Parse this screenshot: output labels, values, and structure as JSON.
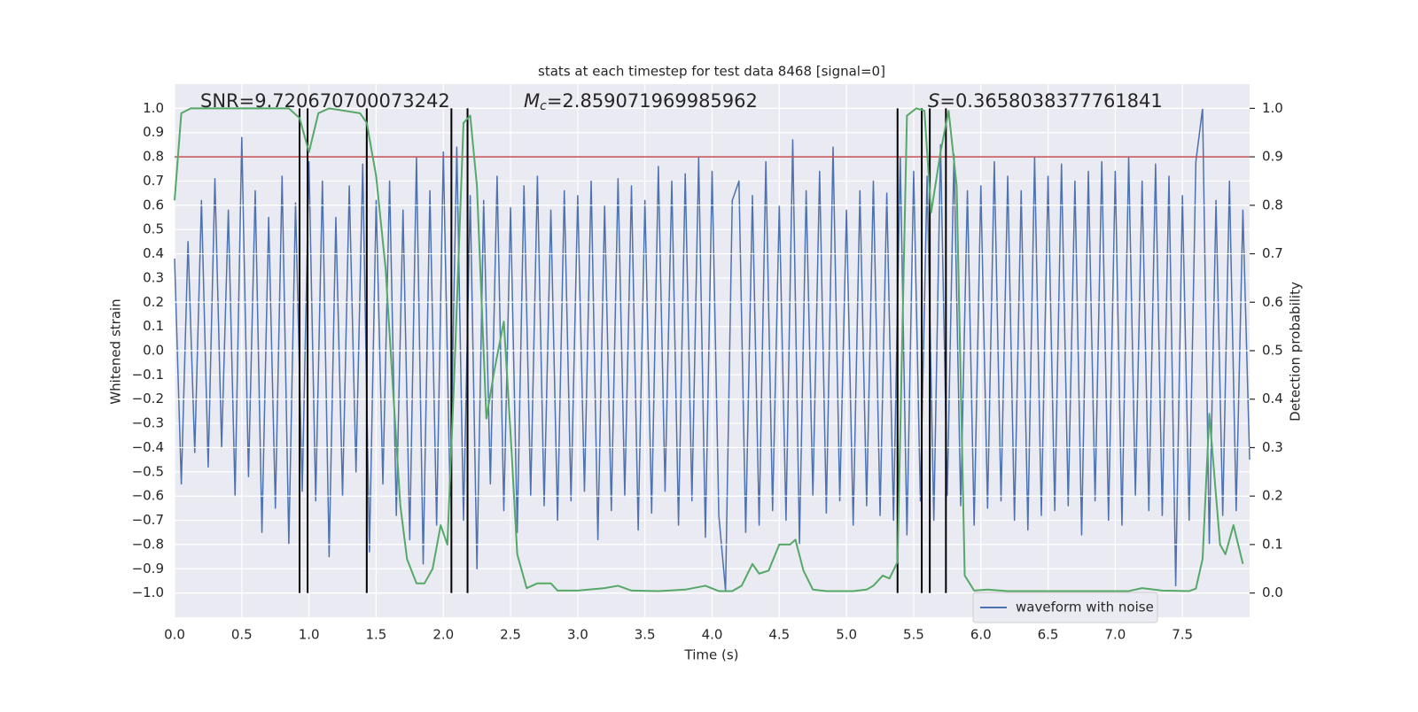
{
  "chart_data": {
    "type": "line",
    "title": "stats at each timestep for test data 8468 [signal=0]",
    "annotations": [
      {
        "text": "SNR=9.720670700073242"
      },
      {
        "symbol": "M",
        "subscript": "c",
        "text": "=2.859071969985962"
      },
      {
        "symbol": "S",
        "text": "=0.3658038377761841"
      }
    ],
    "xlabel": "Time (s)",
    "ylabel": "Whitened strain",
    "y2label": "Detection probability",
    "xlim": [
      0,
      8.0
    ],
    "ylim": [
      -1.1,
      1.1
    ],
    "y2lim": [
      -0.05,
      1.05
    ],
    "xticks": [
      {
        "value": 0,
        "label": "0.0"
      },
      0.5,
      {
        "value": 1,
        "label": "1.0"
      },
      1.5,
      {
        "value": 2,
        "label": "2.0"
      },
      2.5,
      {
        "value": 3,
        "label": "3.0"
      },
      3.5,
      {
        "value": 4,
        "label": "4.0"
      },
      4.5,
      {
        "value": 5,
        "label": "5.0"
      },
      5.5,
      {
        "value": 6,
        "label": "6.0"
      },
      6.5,
      {
        "value": 7,
        "label": "7.0"
      },
      7.5
    ],
    "yticks": [
      {
        "value": -1,
        "label": "−1.0"
      },
      {
        "value": -0.9,
        "label": "−0.9"
      },
      {
        "value": -0.8,
        "label": "−0.8"
      },
      {
        "value": -0.7,
        "label": "−0.7"
      },
      {
        "value": -0.6,
        "label": "−0.6"
      },
      {
        "value": -0.5,
        "label": "−0.5"
      },
      {
        "value": -0.4,
        "label": "−0.4"
      },
      {
        "value": -0.3,
        "label": "−0.3"
      },
      {
        "value": -0.2,
        "label": "−0.2"
      },
      {
        "value": -0.1,
        "label": "−0.1"
      },
      {
        "value": 0,
        "label": "0.0"
      },
      0.1,
      0.2,
      0.3,
      0.4,
      0.5,
      0.6,
      0.7,
      0.8,
      0.9,
      {
        "value": 1,
        "label": "1.0"
      }
    ],
    "y2ticks": [
      {
        "value": 0,
        "label": "0.0"
      },
      0.1,
      0.2,
      0.3,
      0.4,
      0.5,
      0.6,
      0.7,
      0.8,
      0.9,
      {
        "value": 1,
        "label": "1.0"
      }
    ],
    "grid": true,
    "legend": "lower right",
    "series": [
      {
        "name": "waveform with noise",
        "color": "#4c72b0",
        "x": [
          0,
          0.05,
          0.1,
          0.15,
          0.2,
          0.25,
          0.3,
          0.35,
          0.4,
          0.45,
          0.5,
          0.55,
          0.6,
          0.65,
          0.7,
          0.75,
          0.8,
          0.85,
          0.9,
          0.95,
          1,
          1.05,
          1.1,
          1.15,
          1.2,
          1.25,
          1.3,
          1.35,
          1.4,
          1.45,
          1.5,
          1.55,
          1.6,
          1.65,
          1.7,
          1.75,
          1.8,
          1.85,
          1.9,
          1.95,
          2,
          2.05,
          2.1,
          2.15,
          2.2,
          2.25,
          2.3,
          2.35,
          2.4,
          2.45,
          2.5,
          2.55,
          2.6,
          2.65,
          2.7,
          2.75,
          2.8,
          2.85,
          2.9,
          2.95,
          3,
          3.05,
          3.1,
          3.15,
          3.2,
          3.25,
          3.3,
          3.35,
          3.4,
          3.45,
          3.5,
          3.55,
          3.6,
          3.65,
          3.7,
          3.75,
          3.8,
          3.85,
          3.9,
          3.95,
          4,
          4.05,
          4.1,
          4.15,
          4.2,
          4.25,
          4.3,
          4.35,
          4.4,
          4.45,
          4.5,
          4.55,
          4.6,
          4.65,
          4.7,
          4.75,
          4.8,
          4.85,
          4.9,
          4.95,
          5,
          5.05,
          5.1,
          5.15,
          5.2,
          5.25,
          5.3,
          5.35,
          5.4,
          5.45,
          5.5,
          5.55,
          5.6,
          5.65,
          5.7,
          5.75,
          5.8,
          5.85,
          5.9,
          5.95,
          6,
          6.05,
          6.1,
          6.15,
          6.2,
          6.25,
          6.3,
          6.35,
          6.4,
          6.45,
          6.5,
          6.55,
          6.6,
          6.65,
          6.7,
          6.75,
          6.8,
          6.85,
          6.9,
          6.95,
          7,
          7.05,
          7.1,
          7.15,
          7.2,
          7.25,
          7.3,
          7.35,
          7.4,
          7.45,
          7.5,
          7.55,
          7.6,
          7.65,
          7.7,
          7.75,
          7.8,
          7.85,
          7.9,
          7.95,
          8
        ],
        "values": [
          0.38,
          -0.55,
          0.45,
          -0.42,
          0.62,
          -0.48,
          0.71,
          -0.4,
          0.58,
          -0.6,
          0.88,
          -0.52,
          0.66,
          -0.75,
          0.55,
          -0.65,
          0.72,
          -0.8,
          0.61,
          -0.58,
          0.78,
          -0.62,
          0.7,
          -0.85,
          0.55,
          -0.6,
          0.68,
          -0.5,
          0.77,
          -0.83,
          0.62,
          -0.55,
          0.7,
          -0.68,
          0.58,
          -0.78,
          0.8,
          -0.88,
          0.66,
          -0.72,
          0.82,
          -0.6,
          0.84,
          -0.7,
          0.64,
          -0.9,
          0.62,
          -0.55,
          0.72,
          -0.66,
          0.59,
          -0.75,
          0.68,
          -0.6,
          0.72,
          -0.64,
          0.58,
          -0.7,
          0.66,
          -0.62,
          0.64,
          -0.58,
          0.7,
          -0.78,
          0.6,
          -0.66,
          0.71,
          -0.6,
          0.68,
          -0.74,
          0.62,
          -0.67,
          0.76,
          -0.58,
          0.7,
          -0.72,
          0.73,
          -0.62,
          0.8,
          -0.77,
          0.74,
          -0.68,
          -0.99,
          0.62,
          0.7,
          -0.75,
          0.64,
          -0.72,
          0.78,
          -0.66,
          0.6,
          -0.7,
          0.87,
          -0.8,
          0.66,
          -0.6,
          0.74,
          -0.67,
          0.84,
          -0.62,
          0.58,
          -0.72,
          0.66,
          -0.64,
          0.7,
          -0.68,
          0.65,
          -0.7,
          0.8,
          -0.76,
          0.74,
          -0.62,
          0.72,
          -0.7,
          0.85,
          -0.6,
          0.81,
          -0.64,
          0.66,
          -0.72,
          0.68,
          -0.65,
          0.78,
          -0.62,
          0.72,
          -0.7,
          0.66,
          -0.74,
          0.8,
          -0.68,
          0.72,
          -0.66,
          0.77,
          -0.64,
          0.7,
          -0.76,
          0.74,
          -0.62,
          0.78,
          -0.7,
          0.74,
          -0.72,
          0.8,
          -0.6,
          0.7,
          -0.66,
          0.77,
          -0.68,
          0.72,
          -0.97,
          0.64,
          -0.7,
          0.78,
          1.0,
          -0.8,
          0.62,
          -0.68,
          0.7,
          -0.66,
          0.58,
          -0.45
        ]
      },
      {
        "color": "#55a868",
        "axis": "y2",
        "x": [
          0,
          0.05,
          0.12,
          0.3,
          0.6,
          0.85,
          0.93,
          1.0,
          1.07,
          1.15,
          1.38,
          1.43,
          1.5,
          1.57,
          1.63,
          1.68,
          1.73,
          1.8,
          1.86,
          1.92,
          1.98,
          2.03,
          2.08,
          2.15,
          2.2,
          2.25,
          2.32,
          2.38,
          2.45,
          2.5,
          2.55,
          2.62,
          2.7,
          2.8,
          2.85,
          3.0,
          3.2,
          3.3,
          3.4,
          3.6,
          3.8,
          3.95,
          4.05,
          4.15,
          4.22,
          4.3,
          4.35,
          4.42,
          4.5,
          4.58,
          4.62,
          4.68,
          4.75,
          4.85,
          5.05,
          5.15,
          5.2,
          5.27,
          5.32,
          5.38,
          5.45,
          5.52,
          5.58,
          5.63,
          5.7,
          5.76,
          5.82,
          5.88,
          5.95,
          6.05,
          6.2,
          6.5,
          6.8,
          7.1,
          7.2,
          7.35,
          7.55,
          7.6,
          7.65,
          7.7,
          7.78,
          7.82,
          7.88,
          7.95
        ],
        "values": [
          0.81,
          0.99,
          1.0,
          1.0,
          1.0,
          1.0,
          0.98,
          0.91,
          0.99,
          1.0,
          0.99,
          0.97,
          0.86,
          0.67,
          0.4,
          0.18,
          0.07,
          0.02,
          0.02,
          0.05,
          0.14,
          0.1,
          0.44,
          0.97,
          0.985,
          0.84,
          0.36,
          0.46,
          0.56,
          0.33,
          0.08,
          0.01,
          0.02,
          0.02,
          0.005,
          0.005,
          0.01,
          0.015,
          0.005,
          0.004,
          0.007,
          0.015,
          0.004,
          0.004,
          0.015,
          0.06,
          0.04,
          0.046,
          0.1,
          0.1,
          0.11,
          0.046,
          0.007,
          0.004,
          0.004,
          0.007,
          0.015,
          0.036,
          0.03,
          0.064,
          0.985,
          1.0,
          0.995,
          0.785,
          0.91,
          0.995,
          0.84,
          0.036,
          0.005,
          0.007,
          0.004,
          0.004,
          0.004,
          0.004,
          0.01,
          0.005,
          0.004,
          0.009,
          0.07,
          0.37,
          0.1,
          0.08,
          0.14,
          0.06
        ]
      }
    ],
    "hline": {
      "y": 0.9,
      "axis": "y2",
      "color": "#c44e52"
    },
    "vlines": {
      "x": [
        0.93,
        0.99,
        1.43,
        2.06,
        2.18,
        5.38,
        5.56,
        5.62,
        5.74
      ],
      "ymin": 0,
      "ymax": 1,
      "axis": "y2",
      "color": "#000000"
    }
  }
}
